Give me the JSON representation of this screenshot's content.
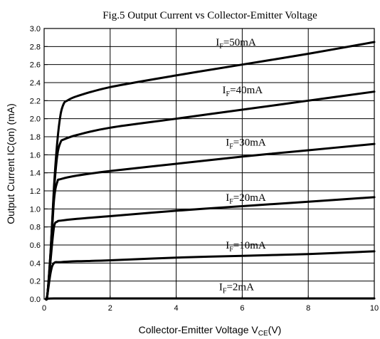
{
  "chart_data": {
    "type": "line",
    "title": "Fig.5 Output Current vs Collector-Emitter Voltage",
    "xlabel_main": "Collector-Emitter Voltage V",
    "xlabel_sub": "CE",
    "xlabel_tail": "(V)",
    "ylabel": "Output Current IC(on) (mA)",
    "xlim": [
      0,
      10
    ],
    "ylim": [
      0,
      3.0
    ],
    "x_ticks": [
      "0",
      "2",
      "4",
      "6",
      "8",
      "10"
    ],
    "y_ticks": [
      "0.0",
      "0.2",
      "0.4",
      "0.6",
      "0.8",
      "1.0",
      "1.2",
      "1.4",
      "1.6",
      "1.8",
      "2.0",
      "2.2",
      "2.4",
      "2.6",
      "2.8",
      "3.0"
    ],
    "grid": true,
    "series": [
      {
        "label_main": "I",
        "label_sub": "F",
        "label_tail": "=50mA",
        "x": [
          0.05,
          0.1,
          0.2,
          0.3,
          0.4,
          0.5,
          0.6,
          0.7,
          1,
          2,
          4,
          6,
          8,
          10
        ],
        "y": [
          0.0,
          0.05,
          0.55,
          1.25,
          1.75,
          2.05,
          2.17,
          2.2,
          2.25,
          2.35,
          2.48,
          2.6,
          2.72,
          2.85
        ]
      },
      {
        "label_main": "I",
        "label_sub": "F",
        "label_tail": "=40mA",
        "x": [
          0.05,
          0.1,
          0.2,
          0.3,
          0.4,
          0.5,
          0.6,
          1,
          2,
          4,
          6,
          8,
          10
        ],
        "y": [
          0.0,
          0.05,
          0.55,
          1.2,
          1.6,
          1.74,
          1.77,
          1.82,
          1.9,
          2.0,
          2.1,
          2.2,
          2.3
        ]
      },
      {
        "label_main": "I",
        "label_sub": "F",
        "label_tail": "=30mA",
        "x": [
          0.05,
          0.1,
          0.2,
          0.3,
          0.4,
          0.5,
          1,
          2,
          4,
          6,
          8,
          10
        ],
        "y": [
          0.0,
          0.05,
          0.5,
          1.1,
          1.3,
          1.33,
          1.37,
          1.42,
          1.5,
          1.58,
          1.65,
          1.72
        ]
      },
      {
        "label_main": "I",
        "label_sub": "F",
        "label_tail": "=20mA",
        "x": [
          0.05,
          0.1,
          0.2,
          0.3,
          0.4,
          0.5,
          1,
          2,
          4,
          6,
          8,
          10
        ],
        "y": [
          0.0,
          0.05,
          0.45,
          0.8,
          0.86,
          0.87,
          0.89,
          0.92,
          0.98,
          1.03,
          1.08,
          1.13
        ]
      },
      {
        "label_main": "I",
        "label_sub": "F",
        "label_tail": "=10mA",
        "x": [
          0.05,
          0.1,
          0.2,
          0.3,
          0.5,
          1,
          2,
          4,
          6,
          8,
          10
        ],
        "y": [
          0.0,
          0.05,
          0.3,
          0.4,
          0.41,
          0.42,
          0.43,
          0.46,
          0.48,
          0.5,
          0.53
        ]
      },
      {
        "label_main": "I",
        "label_sub": "F",
        "label_tail": "=2mA",
        "x": [
          0.05,
          0.1,
          0.3,
          1,
          2,
          4,
          6,
          8,
          10
        ],
        "y": [
          0.0,
          0.005,
          0.008,
          0.008,
          0.008,
          0.008,
          0.008,
          0.008,
          0.008
        ]
      }
    ],
    "label_positions_data": [
      {
        "x": 5.2,
        "y": 2.85
      },
      {
        "x": 5.4,
        "y": 2.32
      },
      {
        "x": 5.5,
        "y": 1.74
      },
      {
        "x": 5.5,
        "y": 1.13
      },
      {
        "x": 5.5,
        "y": 0.6
      },
      {
        "x": 5.3,
        "y": 0.14
      }
    ]
  }
}
